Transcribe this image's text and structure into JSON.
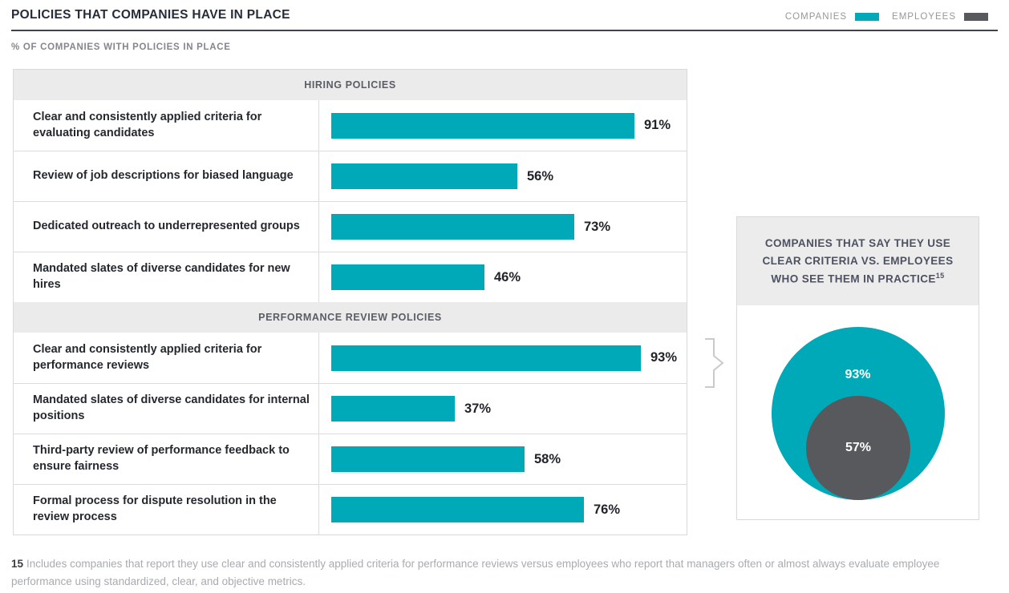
{
  "header": {
    "title": "POLICIES THAT COMPANIES HAVE IN PLACE",
    "subtitle": "% OF COMPANIES WITH POLICIES IN PLACE",
    "legend": [
      {
        "label": "COMPANIES",
        "color": "#00a9b8"
      },
      {
        "label": "EMPLOYEES",
        "color": "#58595c"
      }
    ]
  },
  "chart_data": {
    "type": "bar",
    "orientation": "horizontal",
    "unit": "%",
    "xlim": [
      0,
      100
    ],
    "bar_color": "#00a9b8",
    "grid": false,
    "sections": [
      {
        "title": "HIRING POLICIES",
        "rows": [
          {
            "label": "Clear and consistently applied criteria for evaluating candidates",
            "value": 91,
            "value_label": "91%"
          },
          {
            "label": "Review of job descriptions for biased language",
            "value": 56,
            "value_label": "56%"
          },
          {
            "label": "Dedicated outreach to underrepresented groups",
            "value": 73,
            "value_label": "73%"
          },
          {
            "label": "Mandated slates of diverse candidates for new hires",
            "value": 46,
            "value_label": "46%"
          }
        ]
      },
      {
        "title": "PERFORMANCE REVIEW POLICIES",
        "rows": [
          {
            "label": "Clear and consistently applied criteria for performance reviews",
            "value": 93,
            "value_label": "93%"
          },
          {
            "label": "Mandated slates of diverse candidates for internal positions",
            "value": 37,
            "value_label": "37%"
          },
          {
            "label": "Third-party review of performance feedback to ensure fairness",
            "value": 58,
            "value_label": "58%"
          },
          {
            "label": "Formal process for dispute resolution in the review process",
            "value": 76,
            "value_label": "76%"
          }
        ]
      }
    ],
    "bubble": {
      "type": "nested-circles",
      "title": "COMPANIES THAT SAY THEY USE CLEAR CRITERIA VS. EMPLOYEES WHO SEE THEM IN PRACTICE",
      "title_footnote_ref": "15",
      "outer": {
        "name": "Companies",
        "value": 93,
        "label": "93%",
        "color": "#00a9b8"
      },
      "inner": {
        "name": "Employees",
        "value": 57,
        "label": "57%",
        "color": "#58595c"
      }
    }
  },
  "footnote": {
    "ref": "15",
    "text": "Includes companies that report they use clear and consistently applied criteria for performance reviews versus employees who report that managers often or almost always evaluate employee performance using standardized, clear, and objective metrics."
  }
}
